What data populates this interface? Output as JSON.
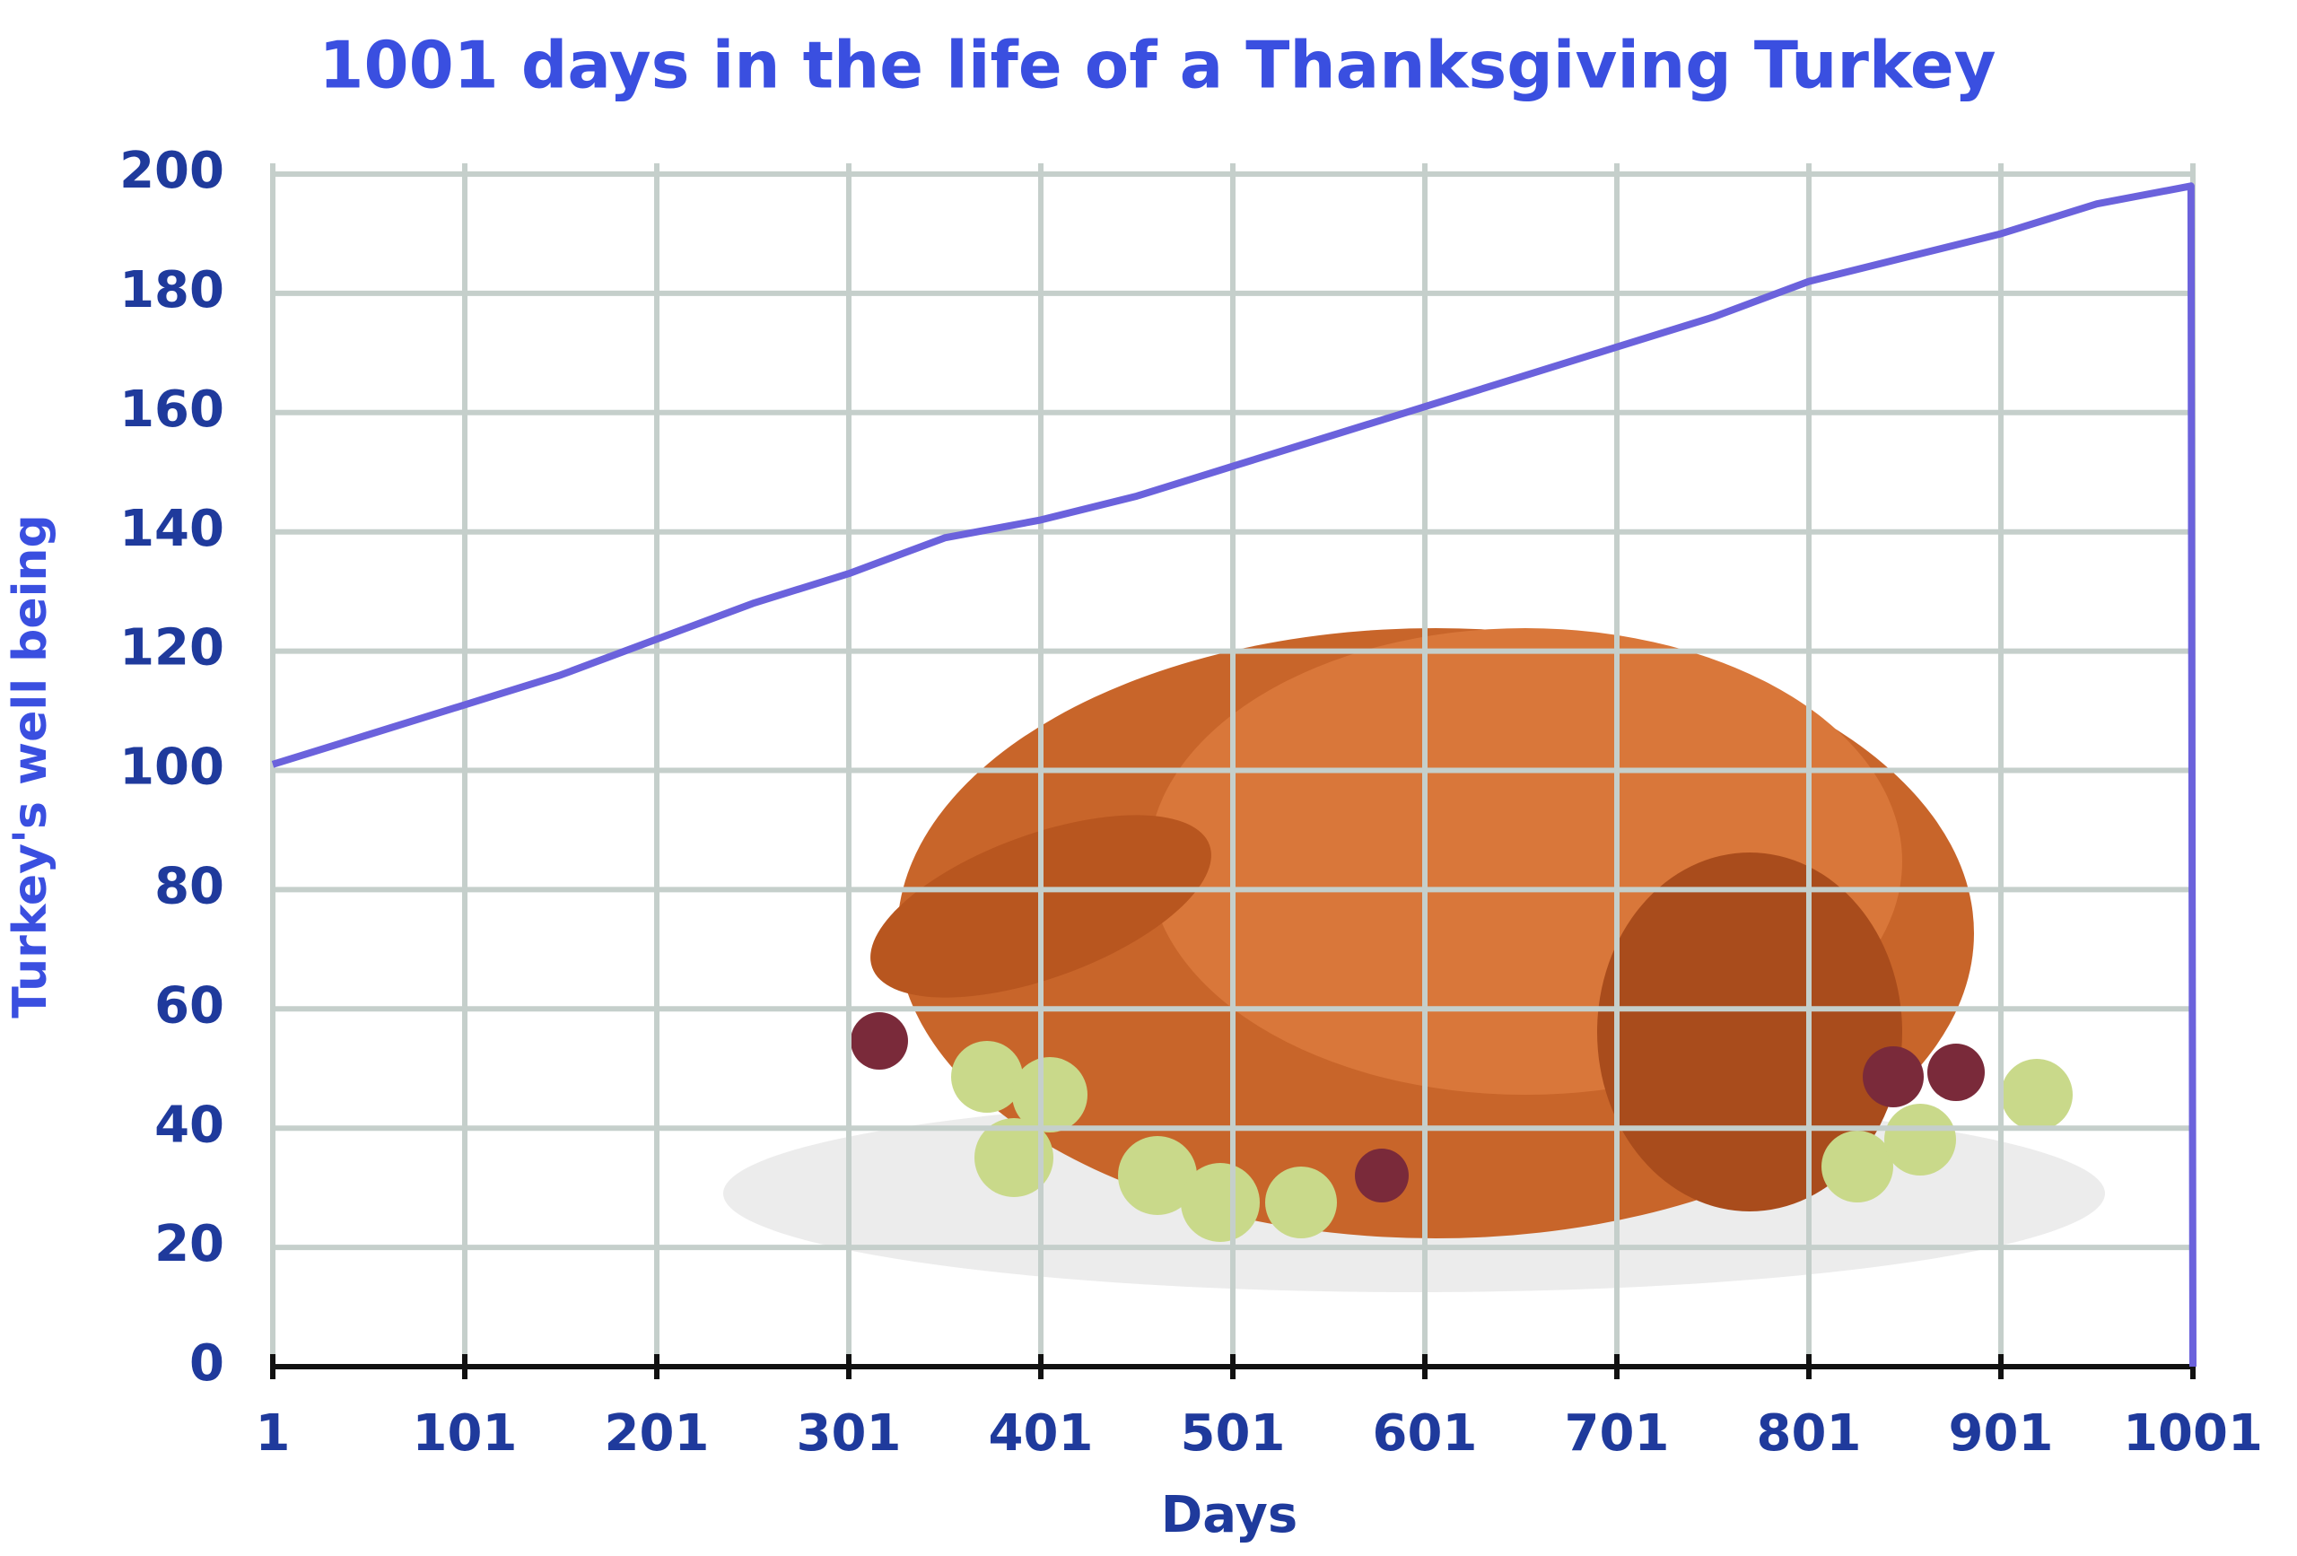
{
  "chart_data": {
    "type": "line",
    "title": "1001 days in the life of a Thanksgiving Turkey",
    "x_label": "Days",
    "y_label": "Turkey's well being",
    "x": [
      1,
      51,
      101,
      151,
      201,
      251,
      301,
      351,
      401,
      451,
      501,
      551,
      601,
      651,
      701,
      751,
      801,
      851,
      901,
      951,
      1000,
      1001
    ],
    "series": [
      {
        "name": "Turkey's well being",
        "color": "#6b62dc",
        "values": [
          101,
          106,
          111,
          116,
          122,
          128,
          133,
          139,
          142,
          146,
          151,
          156,
          161,
          166,
          171,
          176,
          182,
          186,
          190,
          195,
          198,
          0
        ]
      }
    ],
    "xlim": [
      1,
      1001
    ],
    "xticks": [
      1,
      101,
      201,
      301,
      401,
      501,
      601,
      701,
      801,
      901,
      1001
    ],
    "ylim": [
      0,
      200
    ],
    "yticks": [
      0,
      20,
      40,
      60,
      80,
      100,
      120,
      140,
      160,
      180,
      200
    ],
    "grid": true
  }
}
